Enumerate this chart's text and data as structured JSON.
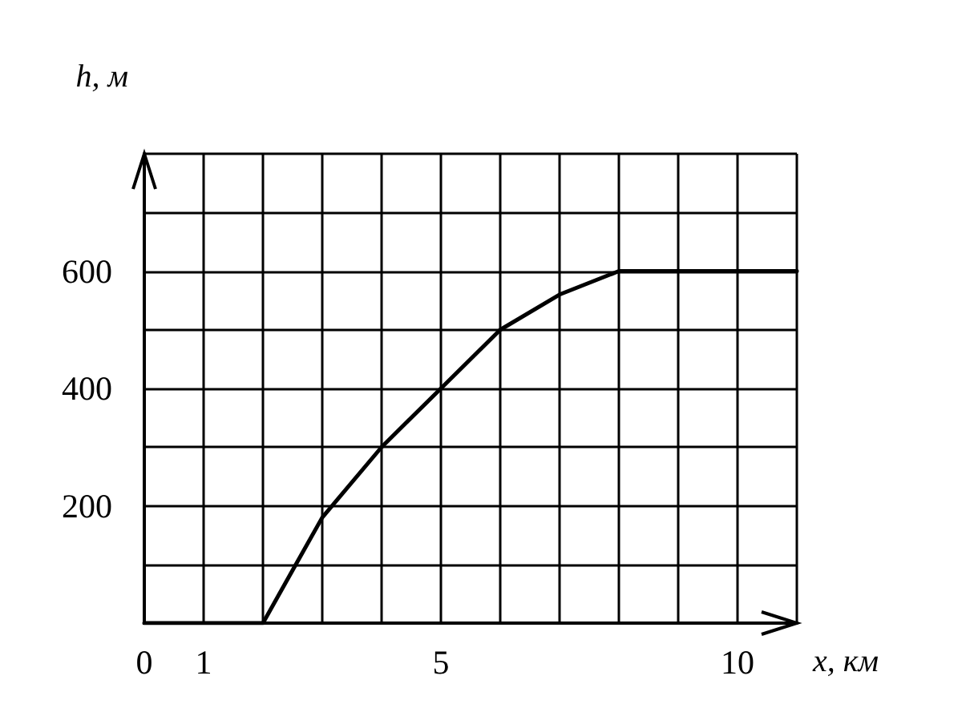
{
  "chart_data": {
    "type": "line",
    "xlabel": "x, км",
    "ylabel": "h, м",
    "x": [
      0,
      2,
      2.5,
      3,
      4,
      5,
      6,
      7,
      8,
      11
    ],
    "series": [
      {
        "color": "#000000",
        "values": [
          0,
          0,
          90,
          180,
          300,
          400,
          500,
          560,
          600,
          600
        ]
      }
    ],
    "xlim": [
      0,
      11
    ],
    "xticks": [
      {
        "value": 0,
        "label": "0"
      },
      1,
      {
        "value": 2,
        "label": null
      },
      {
        "value": 3,
        "label": null
      },
      {
        "value": 4,
        "label": null
      },
      5,
      {
        "value": 6,
        "label": null
      },
      {
        "value": 7,
        "label": null
      },
      {
        "value": 8,
        "label": null
      },
      {
        "value": 9,
        "label": null
      },
      10,
      {
        "value": 11,
        "label": null
      }
    ],
    "ylim": [
      0,
      800
    ],
    "yticks": [
      {
        "value": 0,
        "label": null
      },
      {
        "value": 100,
        "label": null
      },
      200,
      {
        "value": 300,
        "label": null
      },
      400,
      {
        "value": 500,
        "label": null
      },
      600,
      {
        "value": 700,
        "label": null
      },
      {
        "value": 800,
        "label": null
      }
    ],
    "grid": true,
    "marker": "none",
    "line_style": "solid"
  }
}
